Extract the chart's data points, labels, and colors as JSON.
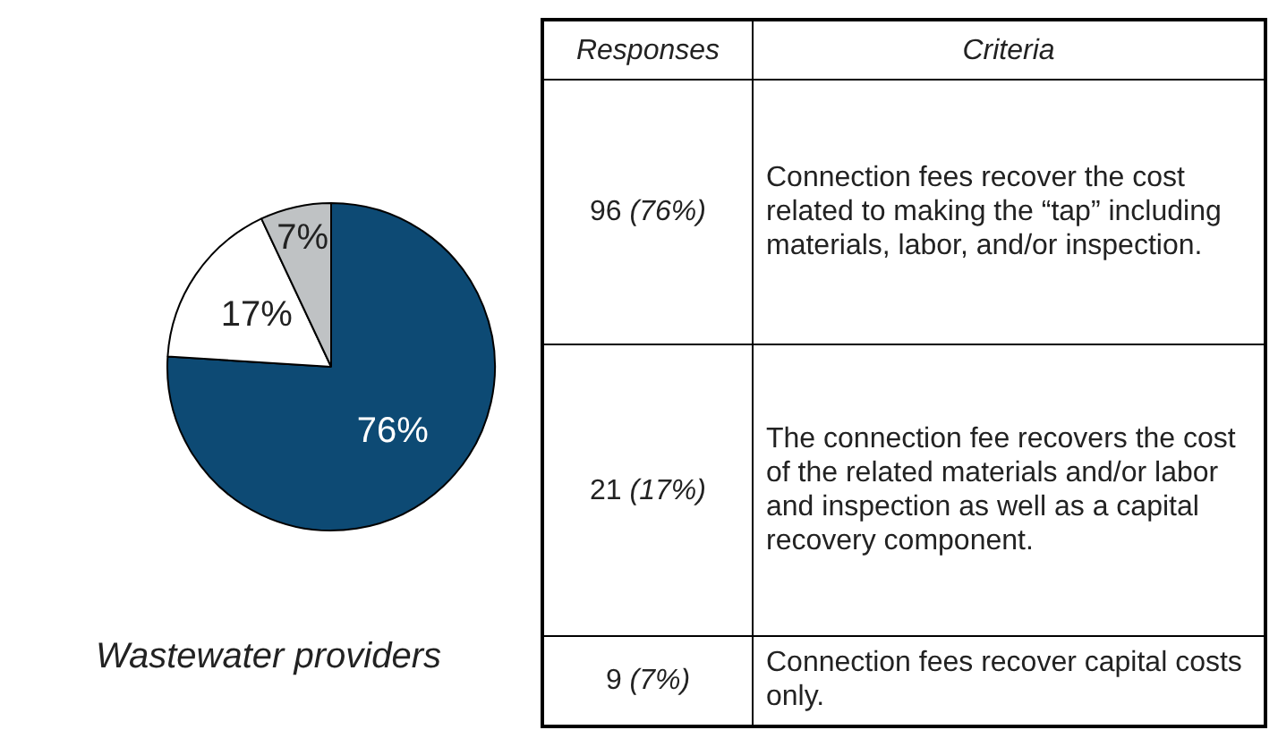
{
  "chart_data": [
    {
      "type": "pie",
      "title": "Wastewater providers",
      "categories": [
        null,
        null,
        null
      ],
      "values": [
        76,
        17,
        7
      ],
      "value_labels": [
        "76%",
        "17%",
        "7%"
      ],
      "colors": [
        "#0d4a74",
        "#ffffff",
        "#bfc2c4"
      ]
    },
    {
      "type": "other",
      "annotations": [
        "Responses",
        "Criteria",
        "96 (76%)",
        "Connection fees recover the cost related to making the “tap” including materials, labor, and/or inspection.",
        "21 (17%)",
        "The connection fee recovers the cost of the related materials and/or labor and inspection as well as a capital recovery component.",
        "9 (7%)",
        "Connection fees recover capital costs only."
      ]
    }
  ]
}
